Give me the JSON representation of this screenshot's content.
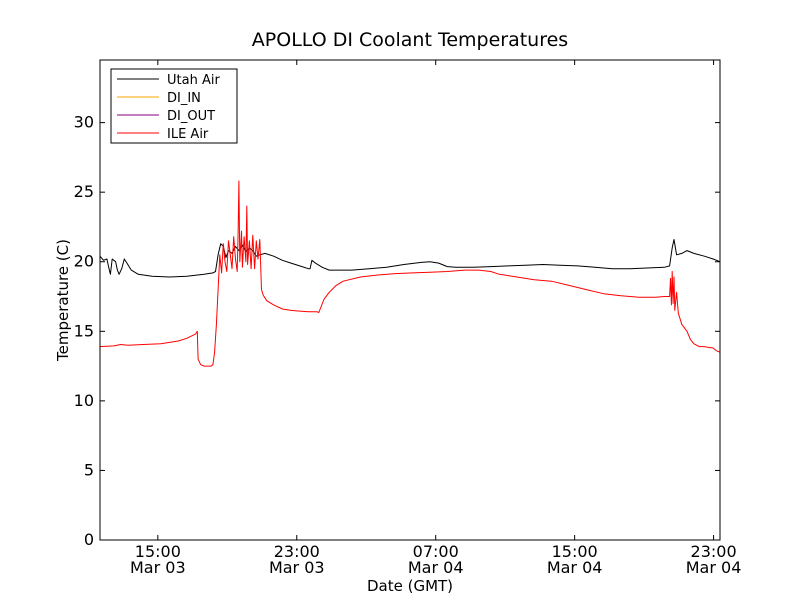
{
  "chart_data": {
    "type": "line",
    "title": "APOLLO DI Coolant Temperatures",
    "xlabel": "Date (GMT)",
    "ylabel": "Temperature (C)",
    "x_unit": "hours since Mar 03 11:40 GMT",
    "xlim": [
      0,
      35.7
    ],
    "ylim": [
      0,
      34.5
    ],
    "yticks": [
      0,
      5,
      10,
      15,
      20,
      25,
      30
    ],
    "xticks": [
      {
        "x": 3.33,
        "line1": "15:00",
        "line2": "Mar 03"
      },
      {
        "x": 11.33,
        "line1": "23:00",
        "line2": "Mar 03"
      },
      {
        "x": 19.33,
        "line1": "07:00",
        "line2": "Mar 04"
      },
      {
        "x": 27.33,
        "line1": "15:00",
        "line2": "Mar 04"
      },
      {
        "x": 35.33,
        "line1": "23:00",
        "line2": "Mar 04"
      }
    ],
    "legend_position": "top-left",
    "series": [
      {
        "name": "Utah Air",
        "color": "#000000",
        "points": [
          [
            0.0,
            20.4
          ],
          [
            0.2,
            20.1
          ],
          [
            0.4,
            20.2
          ],
          [
            0.5,
            19.6
          ],
          [
            0.6,
            19.1
          ],
          [
            0.7,
            20.2
          ],
          [
            0.9,
            20.0
          ],
          [
            1.0,
            19.4
          ],
          [
            1.1,
            19.1
          ],
          [
            1.25,
            19.5
          ],
          [
            1.4,
            20.2
          ],
          [
            1.6,
            19.8
          ],
          [
            1.8,
            19.4
          ],
          [
            2.2,
            19.1
          ],
          [
            3.0,
            18.95
          ],
          [
            4.0,
            18.9
          ],
          [
            5.0,
            18.95
          ],
          [
            6.0,
            19.1
          ],
          [
            6.5,
            19.2
          ],
          [
            6.65,
            19.3
          ],
          [
            6.8,
            20.5
          ],
          [
            6.95,
            21.3
          ],
          [
            7.1,
            21.1
          ],
          [
            7.25,
            20.3
          ],
          [
            7.4,
            20.8
          ],
          [
            7.6,
            20.6
          ],
          [
            7.8,
            21.1
          ],
          [
            8.0,
            20.8
          ],
          [
            8.2,
            21.2
          ],
          [
            8.4,
            20.7
          ],
          [
            8.6,
            21.0
          ],
          [
            8.8,
            20.8
          ],
          [
            9.0,
            20.4
          ],
          [
            9.2,
            20.5
          ],
          [
            9.5,
            20.6
          ],
          [
            10.0,
            20.4
          ],
          [
            10.5,
            20.1
          ],
          [
            11.0,
            19.9
          ],
          [
            11.5,
            19.7
          ],
          [
            12.0,
            19.5
          ],
          [
            12.1,
            19.5
          ],
          [
            12.2,
            20.1
          ],
          [
            12.4,
            19.9
          ],
          [
            12.8,
            19.6
          ],
          [
            13.2,
            19.4
          ],
          [
            13.5,
            19.4
          ],
          [
            14.5,
            19.4
          ],
          [
            15.5,
            19.5
          ],
          [
            16.5,
            19.6
          ],
          [
            17.5,
            19.8
          ],
          [
            18.5,
            19.95
          ],
          [
            19.0,
            20.0
          ],
          [
            19.5,
            19.9
          ],
          [
            20.0,
            19.65
          ],
          [
            20.5,
            19.6
          ],
          [
            21.5,
            19.6
          ],
          [
            22.5,
            19.65
          ],
          [
            23.5,
            19.7
          ],
          [
            24.5,
            19.75
          ],
          [
            25.5,
            19.8
          ],
          [
            26.5,
            19.75
          ],
          [
            27.5,
            19.7
          ],
          [
            28.5,
            19.6
          ],
          [
            29.5,
            19.5
          ],
          [
            30.5,
            19.5
          ],
          [
            31.5,
            19.55
          ],
          [
            32.5,
            19.6
          ],
          [
            32.8,
            19.7
          ],
          [
            32.95,
            21.0
          ],
          [
            33.05,
            21.6
          ],
          [
            33.2,
            20.5
          ],
          [
            33.5,
            20.6
          ],
          [
            33.8,
            20.8
          ],
          [
            34.2,
            20.6
          ],
          [
            34.8,
            20.4
          ],
          [
            35.3,
            20.2
          ],
          [
            35.7,
            20.0
          ]
        ]
      },
      {
        "name": "DI_IN",
        "color": "#ffa500",
        "points": []
      },
      {
        "name": "DI_OUT",
        "color": "#800080",
        "points": []
      },
      {
        "name": "ILE Air",
        "color": "#ff0000",
        "points": [
          [
            0.0,
            13.9
          ],
          [
            0.8,
            13.95
          ],
          [
            1.2,
            14.05
          ],
          [
            1.6,
            14.0
          ],
          [
            2.5,
            14.05
          ],
          [
            3.5,
            14.1
          ],
          [
            4.5,
            14.3
          ],
          [
            5.0,
            14.5
          ],
          [
            5.5,
            14.8
          ],
          [
            5.6,
            15.0
          ],
          [
            5.65,
            13.0
          ],
          [
            5.8,
            12.6
          ],
          [
            6.0,
            12.5
          ],
          [
            6.4,
            12.5
          ],
          [
            6.5,
            12.6
          ],
          [
            6.6,
            13.5
          ],
          [
            6.7,
            15.5
          ],
          [
            6.8,
            18.0
          ],
          [
            6.9,
            20.5
          ],
          [
            7.0,
            19.2
          ],
          [
            7.1,
            21.3
          ],
          [
            7.2,
            20.0
          ],
          [
            7.3,
            19.3
          ],
          [
            7.4,
            21.5
          ],
          [
            7.5,
            20.5
          ],
          [
            7.6,
            19.5
          ],
          [
            7.7,
            21.8
          ],
          [
            7.8,
            20.2
          ],
          [
            7.9,
            19.3
          ],
          [
            7.95,
            22.0
          ],
          [
            8.0,
            25.8
          ],
          [
            8.05,
            20.0
          ],
          [
            8.15,
            22.2
          ],
          [
            8.2,
            19.6
          ],
          [
            8.3,
            21.8
          ],
          [
            8.4,
            20.0
          ],
          [
            8.45,
            24.0
          ],
          [
            8.5,
            19.8
          ],
          [
            8.6,
            21.5
          ],
          [
            8.7,
            19.5
          ],
          [
            8.8,
            21.9
          ],
          [
            8.9,
            19.5
          ],
          [
            9.0,
            21.5
          ],
          [
            9.1,
            20.2
          ],
          [
            9.2,
            21.6
          ],
          [
            9.3,
            18.0
          ],
          [
            9.4,
            17.6
          ],
          [
            9.6,
            17.2
          ],
          [
            10.0,
            16.9
          ],
          [
            10.5,
            16.6
          ],
          [
            11.0,
            16.5
          ],
          [
            11.5,
            16.45
          ],
          [
            12.0,
            16.4
          ],
          [
            12.5,
            16.4
          ],
          [
            12.6,
            16.35
          ],
          [
            12.9,
            17.3
          ],
          [
            13.2,
            17.8
          ],
          [
            13.6,
            18.3
          ],
          [
            14.0,
            18.6
          ],
          [
            15.0,
            18.9
          ],
          [
            16.0,
            19.05
          ],
          [
            17.0,
            19.15
          ],
          [
            18.0,
            19.2
          ],
          [
            19.0,
            19.25
          ],
          [
            20.0,
            19.3
          ],
          [
            21.0,
            19.4
          ],
          [
            21.8,
            19.4
          ],
          [
            22.5,
            19.3
          ],
          [
            23.0,
            19.1
          ],
          [
            24.0,
            18.9
          ],
          [
            25.0,
            18.7
          ],
          [
            26.0,
            18.6
          ],
          [
            27.0,
            18.3
          ],
          [
            28.0,
            18.0
          ],
          [
            29.0,
            17.7
          ],
          [
            30.0,
            17.55
          ],
          [
            31.0,
            17.45
          ],
          [
            32.0,
            17.45
          ],
          [
            32.5,
            17.5
          ],
          [
            32.8,
            17.5
          ],
          [
            32.85,
            18.8
          ],
          [
            32.9,
            16.9
          ],
          [
            32.95,
            19.3
          ],
          [
            33.0,
            17.0
          ],
          [
            33.05,
            18.9
          ],
          [
            33.1,
            16.5
          ],
          [
            33.2,
            17.8
          ],
          [
            33.3,
            16.3
          ],
          [
            33.5,
            15.5
          ],
          [
            33.8,
            15.0
          ],
          [
            34.0,
            14.4
          ],
          [
            34.2,
            14.1
          ],
          [
            34.5,
            13.9
          ],
          [
            34.8,
            13.9
          ],
          [
            35.0,
            13.85
          ],
          [
            35.3,
            13.8
          ],
          [
            35.5,
            13.6
          ],
          [
            35.7,
            13.5
          ]
        ]
      }
    ]
  }
}
